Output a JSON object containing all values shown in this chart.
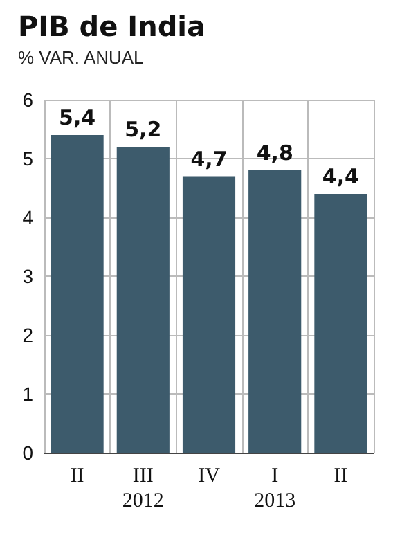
{
  "chart_data": {
    "type": "bar",
    "title": "PIB de India",
    "subtitle": "% VAR. ANUAL",
    "categories": [
      "II",
      "III\n2012",
      "IV",
      "I\n2013",
      "II"
    ],
    "values": [
      5.4,
      5.2,
      4.7,
      4.8,
      4.4
    ],
    "value_labels": [
      "5,4",
      "5,2",
      "4,7",
      "4,8",
      "4,4"
    ],
    "color": "#3d5b6c",
    "ylim": [
      0,
      6
    ],
    "yticks": [
      0,
      1,
      2,
      3,
      4,
      5,
      6
    ],
    "grid": true
  }
}
